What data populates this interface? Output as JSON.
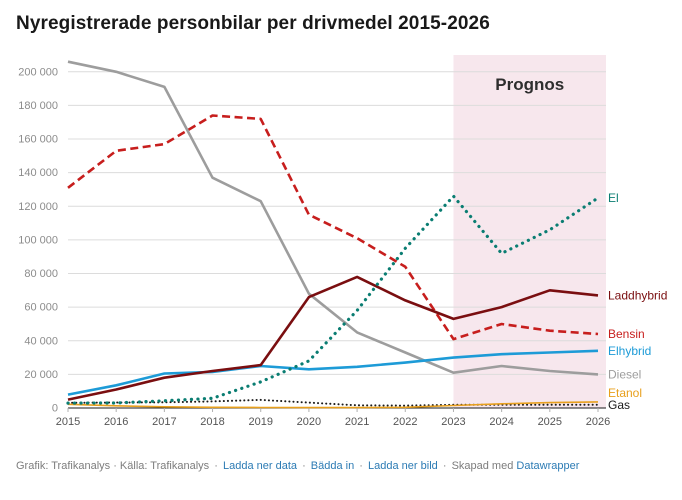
{
  "title": "Nyregistrerade personbilar per drivmedel 2015-2026",
  "chart_data": {
    "type": "line",
    "title": "Nyregistrerade personbilar per drivmedel 2015-2026",
    "xlabel": "",
    "ylabel": "",
    "x": [
      2015,
      2016,
      2017,
      2018,
      2019,
      2020,
      2021,
      2022,
      2023,
      2024,
      2025,
      2026
    ],
    "ylim": [
      0,
      210000
    ],
    "yticks": [
      0,
      20000,
      40000,
      60000,
      80000,
      100000,
      120000,
      140000,
      160000,
      180000,
      200000
    ],
    "ytick_labels": [
      "0",
      "20 000",
      "40 000",
      "60 000",
      "80 000",
      "100 000",
      "120 000",
      "140 000",
      "160 000",
      "180 000",
      "200 000"
    ],
    "grid": true,
    "legend_position": "right-direct-labels",
    "forecast_band": {
      "label": "Prognos",
      "from": 2023,
      "to": 2026
    },
    "series": [
      {
        "name": "Diesel",
        "color": "#9d9d9d",
        "style": "solid",
        "width": 2.6,
        "values": [
          206000,
          200000,
          191000,
          137000,
          123000,
          68000,
          45000,
          33000,
          21000,
          25000,
          22000,
          20000
        ]
      },
      {
        "name": "Bensin",
        "color": "#c71e1d",
        "style": "dashed",
        "width": 2.6,
        "values": [
          131000,
          153000,
          157000,
          174000,
          172000,
          115000,
          101000,
          84000,
          41000,
          50000,
          46000,
          44000
        ]
      },
      {
        "name": "Gas",
        "color": "#1a1a1a",
        "style": "dotted",
        "width": 2.0,
        "values": [
          3100,
          3300,
          3400,
          3900,
          4800,
          3200,
          1600,
          1400,
          1900,
          1900,
          1900,
          1900
        ]
      },
      {
        "name": "Etanol",
        "color": "#e8a01d",
        "style": "solid",
        "width": 1.6,
        "values": [
          2200,
          1300,
          700,
          400,
          300,
          250,
          250,
          400,
          1500,
          2500,
          3200,
          3600
        ]
      },
      {
        "name": "Elhybrid",
        "color": "#1d9bd7",
        "style": "solid",
        "width": 2.6,
        "values": [
          8000,
          13500,
          20500,
          21500,
          25000,
          23000,
          24500,
          27000,
          30000,
          32000,
          33000,
          34000
        ]
      },
      {
        "name": "Laddhybrid",
        "color": "#7a0e10",
        "style": "solid",
        "width": 2.6,
        "values": [
          5000,
          11000,
          18000,
          22000,
          25500,
          66000,
          78000,
          64000,
          53000,
          60000,
          70000,
          67000
        ]
      },
      {
        "name": "El",
        "color": "#0a7d72",
        "style": "dotted",
        "width": 3.2,
        "values": [
          2900,
          3000,
          4300,
          5800,
          15500,
          28000,
          58000,
          95000,
          126000,
          92000,
          106000,
          125000
        ]
      }
    ]
  },
  "colors": {
    "band": "#f7e7ed",
    "grid": "#dcdcdc",
    "axis": "#1a1a1a",
    "tick_label": "#8c8c8c",
    "x_label": "#555555",
    "prognos_label": "#2e2e2e",
    "link": "#2c7bb4",
    "footer_text": "#7d7d7d"
  },
  "footer": {
    "credit": "Grafik: Trafikanalys · Källa: Trafikanalys",
    "separator": "·",
    "links": [
      "Ladda ner data",
      "Bädda in",
      "Ladda ner bild"
    ],
    "created_with": "Skapad med",
    "creator_link": "Datawrapper"
  }
}
